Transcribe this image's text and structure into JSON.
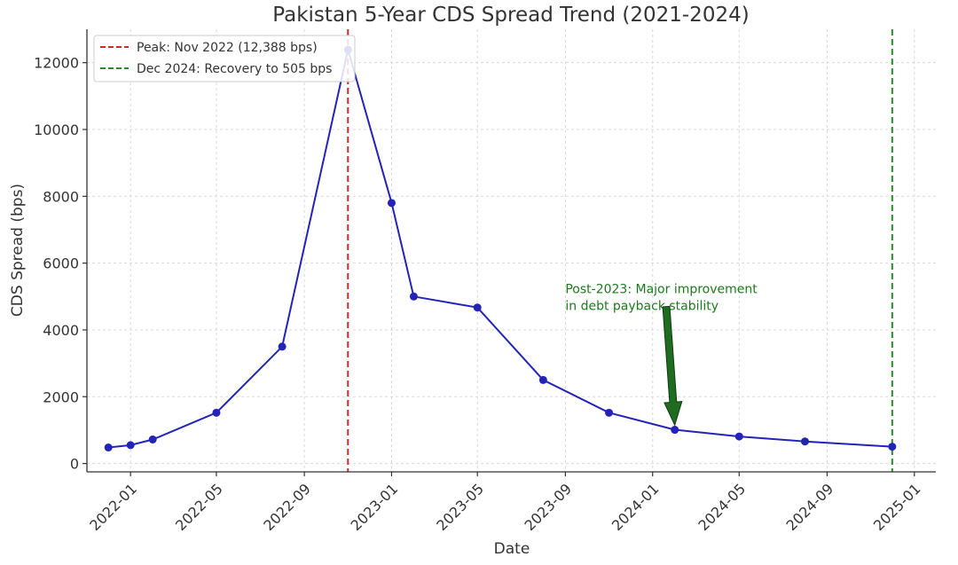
{
  "chart_data": {
    "type": "line",
    "title": "Pakistan 5-Year CDS Spread Trend (2021-2024)",
    "xlabel": "Date",
    "ylabel": "CDS Spread (bps)",
    "x_axis_type": "date",
    "xlim": [
      "2021-11-01",
      "2025-01-31"
    ],
    "ylim": [
      -250,
      13000
    ],
    "x_ticks": [
      "2022-01",
      "2022-05",
      "2022-09",
      "2023-01",
      "2023-05",
      "2023-09",
      "2024-01",
      "2024-05",
      "2024-09",
      "2025-01"
    ],
    "y_ticks": [
      0,
      2000,
      4000,
      6000,
      8000,
      10000,
      12000
    ],
    "grid": true,
    "series": [
      {
        "color": "#2323b8",
        "marker": "circle",
        "x": [
          "2021-12-01",
          "2022-01-01",
          "2022-02-01",
          "2022-05-01",
          "2022-08-01",
          "2022-11-01",
          "2023-01-01",
          "2023-02-01",
          "2023-05-01",
          "2023-08-01",
          "2023-11-01",
          "2024-02-01",
          "2024-05-01",
          "2024-08-01",
          "2024-12-01"
        ],
        "values": [
          480,
          550,
          720,
          1520,
          3500,
          12388,
          7800,
          5000,
          4670,
          2500,
          1520,
          1010,
          810,
          660,
          505
        ]
      }
    ],
    "vertical_lines": [
      {
        "x": "2022-11-01",
        "color": "#d62728",
        "style": "dashed",
        "label": "Peak: Nov 2022 (12,388 bps)"
      },
      {
        "x": "2024-12-01",
        "color": "#2a8a2a",
        "style": "dashed",
        "label": "Dec 2024: Recovery to 505 bps"
      }
    ],
    "legend": {
      "placement": "top-left"
    },
    "annotations": [
      {
        "text_lines": [
          "Post-2023: Major improvement",
          "in debt payback stability"
        ],
        "color": "#1b7a1b",
        "arrow_color": "#1f6b1f",
        "text_at": {
          "x": "2023-09-01",
          "y": 5100
        },
        "arrow_from": {
          "x": "2024-01-20",
          "y": 4700
        },
        "arrow_to": {
          "x": "2024-02-01",
          "y": 1150
        }
      }
    ]
  }
}
